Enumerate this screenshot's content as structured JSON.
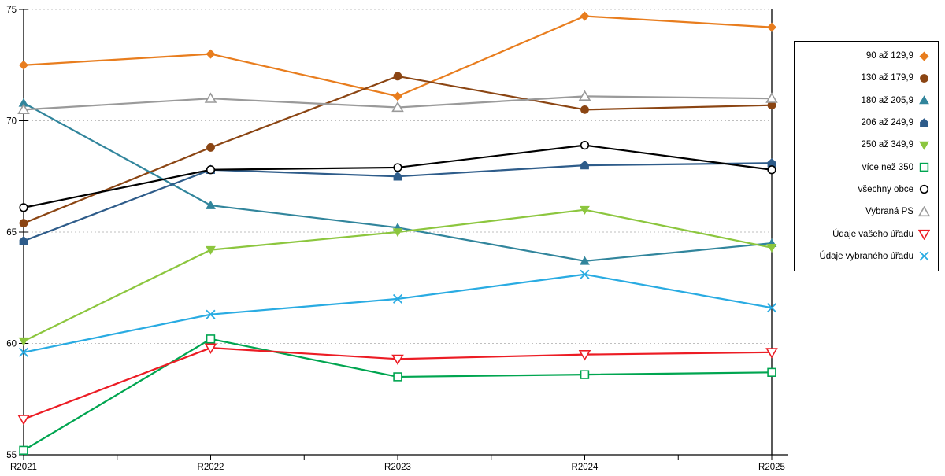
{
  "chart_data": {
    "type": "line",
    "title": "",
    "xlabel": "",
    "ylabel": "",
    "categories": [
      "R2021",
      "R2022",
      "R2023",
      "R2024",
      "R2025"
    ],
    "ylim": [
      55,
      75
    ],
    "yticks": [
      55,
      60,
      65,
      70,
      75
    ],
    "grid": "horizontal-dotted",
    "legend_position": "right-outside",
    "series": [
      {
        "name": "90 až 129,9",
        "color": "#E87D1E",
        "marker": "diamond",
        "filled": true,
        "values": [
          72.5,
          73.0,
          71.1,
          74.7,
          74.2
        ]
      },
      {
        "name": "130 až 179,9",
        "color": "#8B4513",
        "marker": "circle",
        "filled": true,
        "values": [
          65.4,
          68.8,
          72.0,
          70.5,
          70.7
        ]
      },
      {
        "name": "180 až 205,9",
        "color": "#31859C",
        "marker": "triangle-up",
        "filled": true,
        "values": [
          70.8,
          66.2,
          65.2,
          63.7,
          64.5
        ]
      },
      {
        "name": "206 až 249,9",
        "color": "#2E5C8A",
        "marker": "pentagon",
        "filled": true,
        "values": [
          64.6,
          67.8,
          67.5,
          68.0,
          68.1
        ]
      },
      {
        "name": "250 až 349,9",
        "color": "#8CC63E",
        "marker": "triangle-down",
        "filled": true,
        "values": [
          60.1,
          64.2,
          65.0,
          66.0,
          64.3
        ]
      },
      {
        "name": "více než 350",
        "color": "#00A550",
        "marker": "square",
        "filled": false,
        "values": [
          55.2,
          60.2,
          58.5,
          58.6,
          58.7
        ]
      },
      {
        "name": "všechny obce",
        "color": "#000000",
        "marker": "circle",
        "filled": false,
        "values": [
          66.1,
          67.8,
          67.9,
          68.9,
          67.8
        ]
      },
      {
        "name": "Vybraná PS",
        "color": "#9A9A9A",
        "marker": "triangle-up",
        "filled": false,
        "values": [
          70.5,
          71.0,
          70.6,
          71.1,
          71.0
        ]
      },
      {
        "name": "Údaje vašeho úřadu",
        "color": "#EC1C24",
        "marker": "triangle-down",
        "filled": false,
        "values": [
          56.6,
          59.8,
          59.3,
          59.5,
          59.6
        ]
      },
      {
        "name": "Údaje vybraného úřadu",
        "color": "#29ABE2",
        "marker": "x",
        "filled": false,
        "values": [
          59.6,
          61.3,
          62.0,
          63.1,
          61.6
        ]
      }
    ]
  },
  "colors": {
    "background": "#FFFFFF",
    "gridline": "#BFBFBF",
    "axis": "#000000",
    "legend_border": "#000000"
  }
}
